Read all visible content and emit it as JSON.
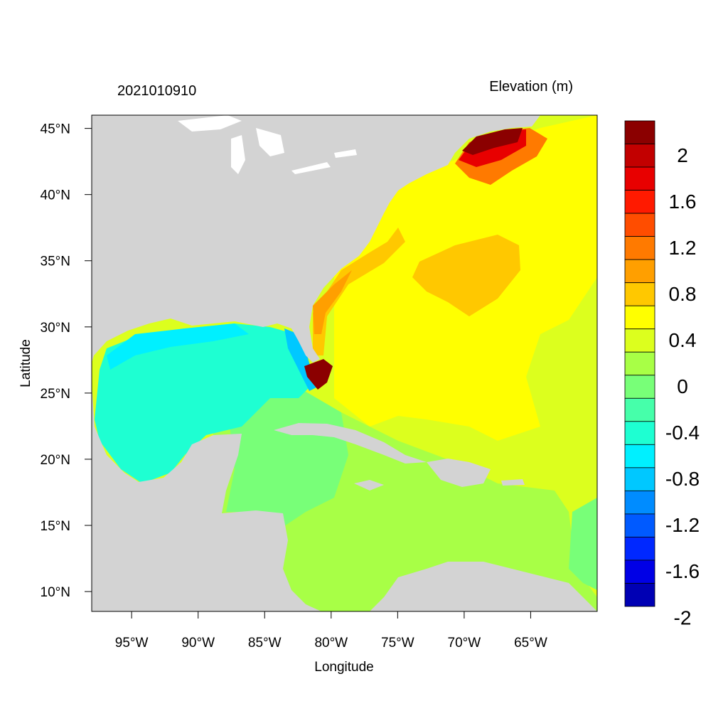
{
  "title_left": "2021010910",
  "title_right": "Elevation (m)",
  "x_axis": {
    "label": "Longitude",
    "ticks": [
      {
        "lon": -95,
        "label": "95°W"
      },
      {
        "lon": -90,
        "label": "90°W"
      },
      {
        "lon": -85,
        "label": "85°W"
      },
      {
        "lon": -80,
        "label": "80°W"
      },
      {
        "lon": -75,
        "label": "75°W"
      },
      {
        "lon": -70,
        "label": "70°W"
      },
      {
        "lon": -65,
        "label": "65°W"
      }
    ]
  },
  "y_axis": {
    "label": "Latitude",
    "ticks": [
      {
        "lat": 45,
        "label": "45°N"
      },
      {
        "lat": 40,
        "label": "40°N"
      },
      {
        "lat": 35,
        "label": "35°N"
      },
      {
        "lat": 30,
        "label": "30°N"
      },
      {
        "lat": 25,
        "label": "25°N"
      },
      {
        "lat": 20,
        "label": "20°N"
      },
      {
        "lat": 15,
        "label": "15°N"
      },
      {
        "lat": 10,
        "label": "10°N"
      }
    ]
  },
  "extent": {
    "lon_min": -98,
    "lon_max": -60,
    "lat_min": 8.5,
    "lat_max": 46
  },
  "colorbar": {
    "colors_top_to_bottom": [
      "#8b0000",
      "#c20000",
      "#e80000",
      "#ff1a00",
      "#ff4d00",
      "#ff7a00",
      "#ff9f00",
      "#ffc800",
      "#ffff00",
      "#dcff1e",
      "#a8ff46",
      "#78ff78",
      "#46ffaa",
      "#1effd2",
      "#00f0ff",
      "#00c8ff",
      "#008cff",
      "#005aff",
      "#0028ff",
      "#0000e6",
      "#0000b4"
    ],
    "labels": [
      {
        "value": 2,
        "text": "2"
      },
      {
        "value": 1.6,
        "text": "1.6"
      },
      {
        "value": 1.2,
        "text": "1.2"
      },
      {
        "value": 0.8,
        "text": "0.8"
      },
      {
        "value": 0.4,
        "text": "0.4"
      },
      {
        "value": 0,
        "text": "0"
      },
      {
        "value": -0.4,
        "text": "-0.4"
      },
      {
        "value": -0.8,
        "text": "-0.8"
      },
      {
        "value": -1.2,
        "text": "-1.2"
      },
      {
        "value": -1.6,
        "text": "-1.6"
      },
      {
        "value": -2,
        "text": "-2"
      }
    ]
  },
  "colors": {
    "land": "#d3d3d3",
    "lakes": "#ffffff"
  }
}
